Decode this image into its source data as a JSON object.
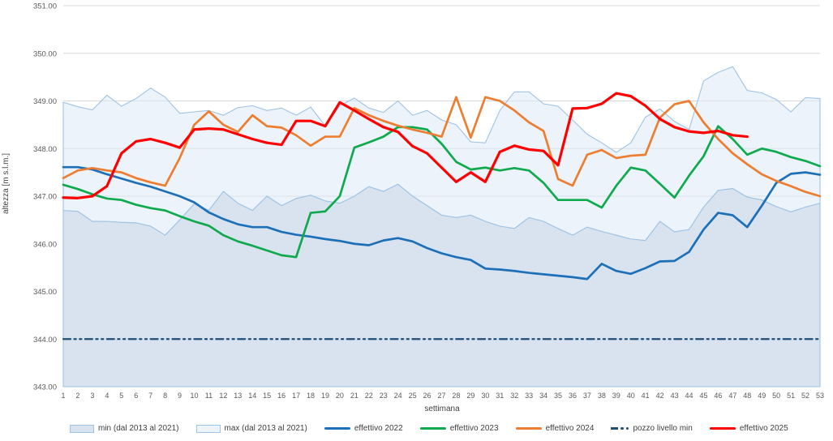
{
  "chart_data": {
    "type": "line",
    "title": "",
    "xlabel": "settimana",
    "ylabel": "altezza [m s.l.m.]",
    "x": [
      1,
      2,
      3,
      4,
      5,
      6,
      7,
      8,
      9,
      10,
      11,
      12,
      13,
      14,
      15,
      16,
      17,
      18,
      19,
      20,
      21,
      22,
      23,
      24,
      25,
      26,
      27,
      28,
      29,
      30,
      31,
      32,
      33,
      34,
      35,
      36,
      37,
      38,
      39,
      40,
      41,
      42,
      43,
      44,
      45,
      46,
      47,
      48,
      49,
      50,
      51,
      52,
      53
    ],
    "ylim": [
      343.0,
      351.0
    ],
    "ytick_step": 1.0,
    "ytick_labels": [
      "343.00",
      "344.00",
      "345.00",
      "346.00",
      "347.00",
      "348.00",
      "349.00",
      "350.00",
      "351.00"
    ],
    "grid": true,
    "legend_position": "bottom",
    "colors": {
      "band_stroke": "#9dc3e6",
      "min_fill": "#d9e3f0",
      "max_fill": "#dfe9f5",
      "grid_line": "#d9d9d9",
      "blue_2022": "#1d70b8",
      "green_2023": "#0fa94e",
      "orange_2024": "#ed7d31",
      "navy_pozzo": "#1f4e79",
      "red_2025": "#fe0000"
    },
    "series": [
      {
        "name": "min (dal 2013 al 2021)",
        "type": "area",
        "color": "#9dc3e6",
        "fill": "#d9e3f0",
        "values": [
          346.7,
          346.68,
          346.47,
          346.47,
          346.45,
          346.44,
          346.37,
          346.18,
          346.5,
          346.84,
          346.7,
          347.1,
          346.85,
          346.7,
          347.0,
          346.8,
          346.95,
          347.02,
          346.9,
          346.85,
          347.0,
          347.2,
          347.1,
          347.25,
          347.0,
          346.8,
          346.6,
          346.55,
          346.6,
          346.47,
          346.37,
          346.32,
          346.55,
          346.47,
          346.32,
          346.18,
          346.35,
          346.26,
          346.18,
          346.1,
          346.07,
          346.47,
          346.25,
          346.3,
          346.77,
          347.12,
          347.16,
          346.98,
          346.92,
          346.78,
          346.67,
          346.77,
          346.85
        ]
      },
      {
        "name": "max (dal 2013 al 2021)",
        "type": "band",
        "color": "#9dc3e6",
        "fill": "#dfe9f5",
        "values": [
          348.97,
          348.88,
          348.81,
          349.12,
          348.89,
          349.05,
          349.27,
          349.08,
          348.74,
          348.77,
          348.8,
          348.7,
          348.86,
          348.9,
          348.8,
          348.85,
          348.7,
          348.87,
          348.48,
          348.9,
          349.06,
          348.85,
          348.76,
          349.0,
          348.7,
          348.8,
          348.6,
          348.5,
          348.14,
          348.12,
          348.8,
          349.19,
          349.19,
          348.94,
          348.89,
          348.6,
          348.3,
          348.12,
          347.92,
          348.12,
          348.66,
          348.83,
          348.57,
          348.4,
          349.42,
          349.6,
          349.72,
          349.22,
          349.17,
          349.03,
          348.77,
          349.07,
          349.05
        ]
      },
      {
        "name": "effettivo 2022",
        "type": "line",
        "color": "#1d70b8",
        "values": [
          347.61,
          347.61,
          347.56,
          347.46,
          347.37,
          347.28,
          347.2,
          347.1,
          347.0,
          346.87,
          346.66,
          346.52,
          346.41,
          346.35,
          346.35,
          346.25,
          346.19,
          346.15,
          346.1,
          346.06,
          346.0,
          345.97,
          346.07,
          346.12,
          346.05,
          345.91,
          345.8,
          345.72,
          345.66,
          345.48,
          345.46,
          345.43,
          345.39,
          345.36,
          345.33,
          345.3,
          345.26,
          345.58,
          345.43,
          345.37,
          345.49,
          345.63,
          345.64,
          345.83,
          346.3,
          346.65,
          346.6,
          346.35,
          346.8,
          347.28,
          347.47,
          347.5,
          347.45
        ]
      },
      {
        "name": "effettivo 2023",
        "type": "line",
        "color": "#0fa94e",
        "values": [
          347.24,
          347.15,
          347.04,
          346.95,
          346.92,
          346.82,
          346.75,
          346.7,
          346.58,
          346.47,
          346.38,
          346.18,
          346.05,
          345.96,
          345.86,
          345.76,
          345.72,
          346.65,
          346.68,
          347.0,
          348.02,
          348.13,
          348.25,
          348.45,
          348.45,
          348.4,
          348.1,
          347.72,
          347.56,
          347.6,
          347.54,
          347.59,
          347.54,
          347.28,
          346.92,
          346.92,
          346.92,
          346.76,
          347.22,
          347.6,
          347.54,
          347.26,
          346.97,
          347.43,
          347.84,
          348.47,
          348.2,
          347.87,
          348.0,
          347.93,
          347.82,
          347.74,
          347.63
        ]
      },
      {
        "name": "effettivo 2024",
        "type": "line",
        "color": "#ed7d31",
        "values": [
          347.38,
          347.54,
          347.59,
          347.54,
          347.5,
          347.38,
          347.29,
          347.22,
          347.8,
          348.5,
          348.78,
          348.5,
          348.35,
          348.7,
          348.47,
          348.44,
          348.28,
          348.06,
          348.25,
          348.25,
          348.85,
          348.7,
          348.58,
          348.48,
          348.4,
          348.33,
          348.25,
          349.08,
          348.23,
          349.08,
          349.0,
          348.8,
          348.55,
          348.37,
          347.36,
          347.22,
          347.87,
          347.97,
          347.8,
          347.85,
          347.87,
          348.65,
          348.93,
          349.0,
          348.55,
          348.2,
          347.9,
          347.67,
          347.46,
          347.32,
          347.21,
          347.09,
          347.0
        ]
      },
      {
        "name": "pozzo livello min",
        "type": "dashdot",
        "color": "#1f4e79",
        "constant": 344.0
      },
      {
        "name": "effettivo 2025",
        "type": "line",
        "color": "#fe0000",
        "emphasis": true,
        "values": [
          346.97,
          346.96,
          347.0,
          347.21,
          347.9,
          348.15,
          348.2,
          348.12,
          348.02,
          348.4,
          348.42,
          348.4,
          348.3,
          348.2,
          348.12,
          348.08,
          348.58,
          348.58,
          348.47,
          348.97,
          348.8,
          348.62,
          348.45,
          348.35,
          348.05,
          347.9,
          347.6,
          347.3,
          347.5,
          347.3,
          347.93,
          348.06,
          347.98,
          347.95,
          347.65,
          348.84,
          348.85,
          348.94,
          349.16,
          349.1,
          348.9,
          348.62,
          348.45,
          348.36,
          348.33,
          348.37,
          348.28,
          348.25,
          null,
          null,
          null,
          null,
          null
        ]
      }
    ]
  }
}
